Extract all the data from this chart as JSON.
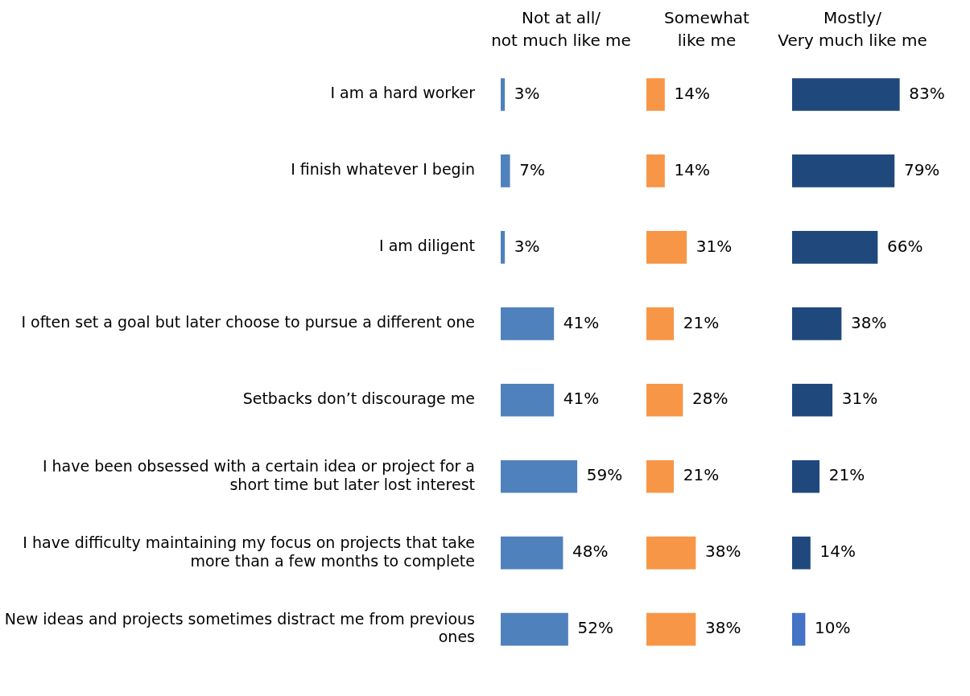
{
  "chart_data": [
    {
      "type": "bar",
      "orientation": "horizontal",
      "title": "Not at all/\nnot much like me",
      "tick_labels": "y",
      "color": "#4f81bd",
      "categories": [
        "I am a hard worker",
        "I finish whatever I begin",
        "I am diligent",
        "I often set a goal but later choose to pursue a different one",
        "Setbacks don’t discourage me",
        "I have been obsessed with a certain idea or project for a short time but later lost interest",
        "I have difficulty maintaining my focus on projects that take more than a few months to complete",
        "New ideas and projects sometimes distract me from previous ones"
      ],
      "values": [
        3,
        7,
        3,
        41,
        41,
        59,
        48,
        52
      ],
      "value_labels": [
        "3%",
        "7%",
        "3%",
        "41%",
        "41%",
        "59%",
        "48%",
        "52%"
      ]
    },
    {
      "type": "bar",
      "orientation": "horizontal",
      "title": "Somewhat\nlike me",
      "tick_labels": false,
      "color": "#f79646",
      "values": [
        14,
        14,
        31,
        21,
        28,
        21,
        38,
        38
      ],
      "value_labels": [
        "14%",
        "14%",
        "31%",
        "21%",
        "28%",
        "21%",
        "38%",
        "38%"
      ]
    },
    {
      "type": "bar",
      "orientation": "horizontal",
      "title": "Mostly/\nVery much like me",
      "tick_labels": false,
      "colors": [
        "#1f497d",
        "#1f497d",
        "#1f497d",
        "#1f497d",
        "#1f497d",
        "#1f497d",
        "#1f497d",
        "#4472c4"
      ],
      "values": [
        83,
        79,
        66,
        38,
        31,
        21,
        14,
        10
      ],
      "value_labels": [
        "83%",
        "79%",
        "66%",
        "38%",
        "31%",
        "21%",
        "14%",
        "10%"
      ]
    }
  ]
}
